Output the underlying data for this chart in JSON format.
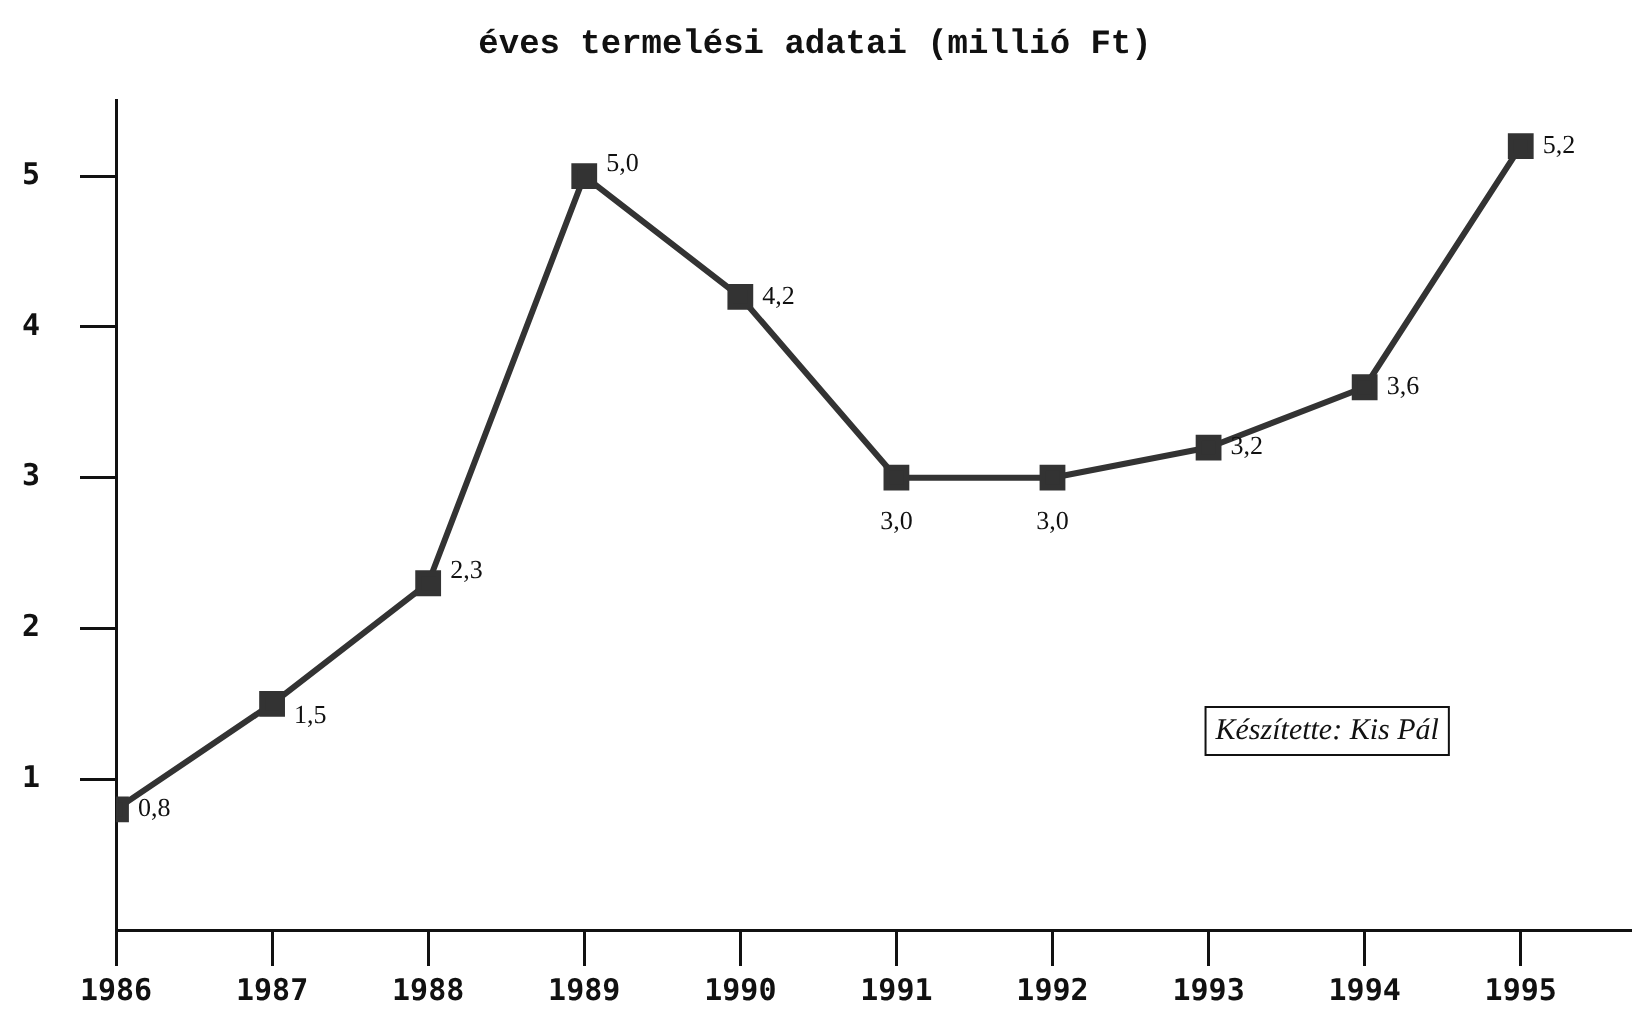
{
  "chart_data": {
    "type": "line",
    "title": "éves termelési adatai (millió Ft)",
    "x": [
      1986,
      1987,
      1988,
      1989,
      1990,
      1991,
      1992,
      1993,
      1994,
      1995
    ],
    "series": [
      {
        "color": "#333333",
        "values": [
          0.8,
          1.5,
          2.3,
          5.0,
          4.2,
          3.0,
          3.0,
          3.2,
          3.6,
          5.2
        ],
        "value_labels": [
          "0,8",
          "1,5",
          "2,3",
          "5,0",
          "4,2",
          "3,0",
          "3,0",
          "3,2",
          "3,6",
          "5,2"
        ]
      }
    ],
    "xlim": [
      1986,
      1995.7
    ],
    "xticks": [
      1986,
      1987,
      1988,
      1989,
      1990,
      1991,
      1992,
      1993,
      1994,
      1995
    ],
    "ylim": [
      0,
      5.5
    ],
    "yticks": [
      1,
      2,
      3,
      4,
      5
    ],
    "marker": "square",
    "line_style": "solid",
    "grid": false,
    "legend": false,
    "annotations": [
      "Készítette: Kis Pál"
    ]
  }
}
